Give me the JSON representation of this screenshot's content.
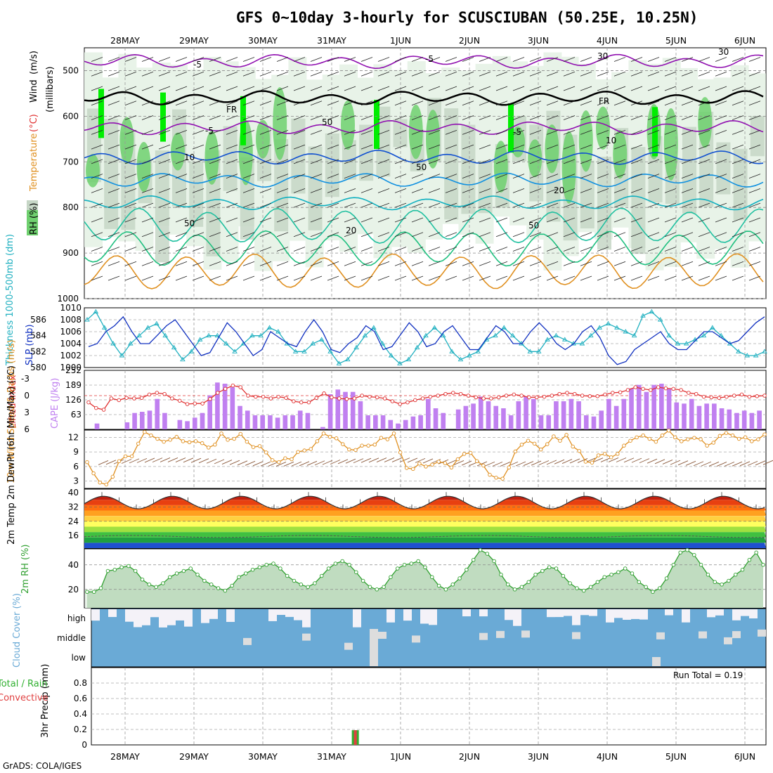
{
  "title": "GFS 0~10day 3-hourly for SCUSCIUBAN (50.25E, 10.25N)",
  "credit": "GrADS: COLA/IGES",
  "run_total": "Run Total = 0.19",
  "colors": {
    "rh_light": "#e8f3e8",
    "rh_mid": "#c6d6c6",
    "rh_green": "#6fd06f",
    "rh_bright": "#00ee00",
    "cape": "#c080f0",
    "lifted": "#e03030",
    "thick": "#20b0c0",
    "slp": "#1030c0",
    "wind": "#e09020",
    "barb": "#8b5a3c",
    "rh2m": "#30a030",
    "cloud": "#6aaad6",
    "cloud_gap": "#dddddd",
    "rain_total": "#30b030",
    "rain_conv": "#e04040"
  },
  "chart_data": [
    {
      "panel": "upper-air",
      "type": "heatmap",
      "ylabel_parts": [
        "RH (%)",
        "Temperature",
        "(°C)",
        "Wind",
        "(m/s)"
      ],
      "ylabel2": "(millibars)",
      "y_ticks": [
        "500",
        "600",
        "700",
        "800",
        "900",
        "1000"
      ],
      "ylim": [
        1000,
        450
      ],
      "x_dates": [
        "28MAY",
        "29MAY",
        "30MAY",
        "31MAY",
        "1JUN",
        "2JUN",
        "3JUN",
        "4JUN",
        "5JUN",
        "6JUN"
      ],
      "contour_labels": [
        "-5",
        "-5",
        "-5",
        "-5",
        "FR",
        "FR",
        "10",
        "10",
        "20",
        "20",
        "30",
        "30",
        "50",
        "50",
        "50",
        "50"
      ],
      "isotherms": [
        {
          "temp": -5,
          "pressure": 480
        },
        {
          "temp": 0,
          "pressure": 560
        },
        {
          "temp": -5,
          "pressure": 625
        },
        {
          "temp": 10,
          "pressure": 690
        },
        {
          "temp": 15,
          "pressure": 740
        },
        {
          "temp": 20,
          "pressure": 790
        },
        {
          "temp": 25,
          "pressure": 840
        },
        {
          "temp": 30,
          "pressure": 890
        },
        {
          "temp": 35,
          "pressure": 940
        }
      ]
    },
    {
      "panel": "thickness-slp",
      "type": "line",
      "ylabel_left": "Thickness 1000-500mb (dm)",
      "ylabel_right": "SLP (mb)",
      "ticks_left": [
        "580",
        "582",
        "584",
        "586"
      ],
      "ticks_right": [
        "1000",
        "1002",
        "1004",
        "1006",
        "1008",
        "1010"
      ],
      "series": [
        {
          "name": "SLP (mb)",
          "values": [
            1003.5,
            1004,
            1006,
            1007,
            1008.5,
            1006,
            1004,
            1004,
            1005.5,
            1007,
            1008,
            1006,
            1004,
            1002,
            1002.5,
            1005,
            1007.5,
            1006,
            1004,
            1002,
            1003,
            1006,
            1005,
            1004,
            1003.5,
            1006,
            1008,
            1006,
            1003,
            1002.5,
            1004,
            1005,
            1007,
            1006,
            1003,
            1003.5,
            1005.5,
            1007.5,
            1006,
            1003.5,
            1004,
            1006,
            1007,
            1005,
            1003,
            1003,
            1005,
            1007,
            1006,
            1004,
            1004,
            1006,
            1007.5,
            1006,
            1004,
            1003,
            1004,
            1006,
            1007,
            1005,
            1002,
            1000.5,
            1001,
            1003,
            1004,
            1005,
            1006,
            1004,
            1003,
            1003,
            1004.5,
            1006,
            1006,
            1005,
            1004,
            1004.5,
            1006,
            1007.5,
            1008.5
          ]
        },
        {
          "name": "Thickness (dm)",
          "values": [
            586,
            587,
            585,
            583,
            581.5,
            583,
            584,
            585,
            585.5,
            584,
            582.5,
            581,
            582,
            583.5,
            584,
            584,
            583,
            582,
            583,
            584,
            584,
            585,
            584.5,
            583,
            582,
            582,
            583,
            583.5,
            582,
            580.5,
            581,
            582.5,
            584,
            585,
            583,
            581.5,
            580.5,
            581,
            582.5,
            584,
            585,
            584,
            582,
            581,
            581.5,
            582,
            583.5,
            584,
            585,
            584,
            583,
            582,
            582,
            583.5,
            584,
            583.5,
            583,
            583,
            584,
            585,
            585.5,
            585,
            584.5,
            584,
            586.5,
            587,
            586,
            584,
            583,
            583,
            583.5,
            584,
            585,
            584,
            583,
            582,
            581.5,
            581.5,
            582
          ]
        }
      ]
    },
    {
      "panel": "cape-lifted",
      "type": "bar",
      "ylabel_left": "Lifted Index",
      "ylabel_right": "CAPE (J/kg)",
      "ticks_left": [
        "-3",
        "0",
        "3",
        "6"
      ],
      "ticks_right": [
        "63",
        "126",
        "189",
        "252"
      ],
      "cape": [
        0,
        25,
        0,
        0,
        0,
        30,
        70,
        75,
        80,
        130,
        70,
        0,
        40,
        35,
        50,
        70,
        145,
        200,
        195,
        180,
        100,
        80,
        60,
        60,
        60,
        50,
        60,
        60,
        80,
        70,
        0,
        10,
        150,
        170,
        160,
        160,
        120,
        60,
        60,
        60,
        40,
        25,
        40,
        55,
        60,
        130,
        90,
        70,
        0,
        85,
        100,
        110,
        140,
        120,
        100,
        90,
        60,
        120,
        140,
        130,
        60,
        60,
        120,
        120,
        130,
        120,
        60,
        55,
        80,
        130,
        100,
        130,
        175,
        190,
        160,
        190,
        195,
        175,
        115,
        110,
        130,
        100,
        110,
        110,
        90,
        85,
        70,
        80,
        70,
        80
      ],
      "lifted": [
        1.2,
        2.2,
        2.5,
        0.5,
        0.8,
        0.4,
        0.5,
        0.4,
        -0.2,
        -0.5,
        -0.3,
        0.5,
        0.9,
        1.5,
        1.4,
        1.4,
        0.6,
        -0.5,
        -1.2,
        -1.8,
        -1.5,
        0,
        0.2,
        0.2,
        0.5,
        0.2,
        0.4,
        1.0,
        1.2,
        1.2,
        0.4,
        -0.4,
        0.3,
        0.5,
        0.6,
        0.5,
        0,
        0.2,
        0.3,
        0.5,
        1,
        1.5,
        1.2,
        0.8,
        0.5,
        0.2,
        0,
        -0.3,
        -0.5,
        -0.3,
        0,
        0.3,
        0.5,
        0.5,
        0.3,
        0,
        -0.2,
        0,
        0.3,
        0.3,
        0.2,
        0,
        -0.3,
        -0.5,
        -0.3,
        0,
        0.1,
        0.1,
        -0.2,
        -0.5,
        -0.6,
        -1.0,
        -1.5,
        -1.2,
        -1.0,
        -1.5,
        -1.3,
        -1.2,
        -1.0,
        -0.5,
        -0.3,
        0.2,
        0.3,
        0.4,
        0.2,
        0,
        -0.2,
        0.2,
        0.1,
        0
      ]
    },
    {
      "panel": "wind10m",
      "type": "line",
      "ylabel": "10m Wind Speed & Barbs (m/s)",
      "ticks": [
        "3",
        "6",
        "9",
        "12"
      ],
      "values": [
        6.9,
        4.6,
        2.7,
        2.3,
        3.9,
        7.1,
        8.1,
        8.1,
        10.7,
        13.1,
        12.4,
        11.7,
        11.1,
        11.5,
        12.1,
        11.2,
        11.0,
        11.2,
        10.8,
        9.9,
        10.5,
        12.8,
        11.5,
        11.7,
        12.7,
        11.1,
        10.0,
        10.2,
        8.9,
        7.3,
        6.9,
        7.7,
        7.5,
        9.0,
        9.3,
        9.6,
        11.2,
        12.8,
        12.1,
        11.8,
        10.6,
        9.5,
        9.4,
        10.3,
        10.3,
        10.5,
        11.9,
        11.6,
        12.8,
        8.9,
        5.7,
        5.5,
        6.6,
        6.0,
        6.4,
        7.0,
        6.7,
        5.8,
        7.5,
        8.6,
        8.8,
        7.1,
        6.2,
        4.3,
        3.7,
        3.5,
        5.8,
        9.1,
        10.5,
        11.3,
        10.7,
        9.5,
        10.6,
        12.2,
        11.3,
        12.5,
        10.1,
        9.2,
        7.0,
        6.8,
        8.3,
        8.6,
        7.9,
        8.6,
        10.3,
        11.3,
        12.0,
        12.4,
        11.7,
        11.1,
        12.4,
        13.4,
        12.0,
        11.2,
        11.6,
        11.9,
        11.6,
        10.3,
        10.9,
        12.3,
        12.9,
        12.4,
        11.7,
        12.0,
        11.2,
        11.6,
        12.6
      ]
    },
    {
      "panel": "temp2m",
      "type": "area",
      "ylabel": "2m Temp 2m DewPt (6hr Min/Max) (°C)",
      "ticks": [
        "16",
        "24",
        "32",
        "40"
      ],
      "temp_cycle": {
        "min": 31,
        "max": 38
      },
      "dewpoint": 15.5
    },
    {
      "panel": "rh2m",
      "type": "line",
      "ylabel": "2m RH (%)",
      "ticks": [
        "20",
        "40"
      ],
      "values": [
        18,
        18,
        21,
        35,
        36,
        38,
        39,
        35,
        28,
        24,
        22,
        25,
        30,
        33,
        35,
        37,
        32,
        27,
        24,
        21,
        19,
        23,
        30,
        33,
        36,
        38,
        40,
        41,
        37,
        31,
        27,
        24,
        22,
        25,
        31,
        37,
        41,
        43,
        40,
        34,
        27,
        22,
        20,
        22,
        30,
        37,
        40,
        41,
        43,
        38,
        30,
        23,
        20,
        24,
        29,
        36,
        44,
        52,
        49,
        43,
        32,
        24,
        20,
        22,
        26,
        32,
        35,
        38,
        37,
        31,
        25,
        21,
        19,
        22,
        26,
        30,
        32,
        34,
        37,
        33,
        26,
        22,
        18,
        21,
        29,
        40,
        50,
        52,
        48,
        40,
        32,
        26,
        24,
        27,
        32,
        36,
        44,
        50,
        40
      ]
    },
    {
      "panel": "cloud",
      "type": "heatmap",
      "ylabel": "Cloud Cover (%)",
      "rows": [
        "high",
        "middle",
        "low"
      ]
    },
    {
      "panel": "precip",
      "type": "bar",
      "ylabel_left": "Total / Rain",
      "ylabel_left2": "Convective",
      "ylabel_right": "3hr Precip (mm)",
      "ticks": [
        "0",
        "0.2",
        "0.4",
        "0.6",
        "0.8"
      ],
      "bars": [
        {
          "date_index": 31,
          "total": 0.19,
          "convective": 0.19
        }
      ]
    }
  ]
}
